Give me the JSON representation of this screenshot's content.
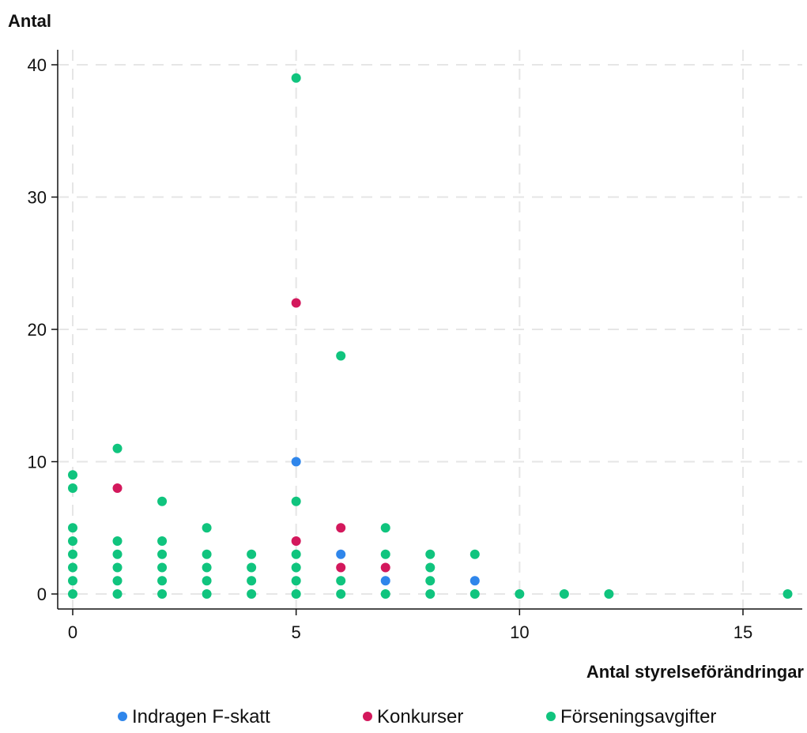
{
  "chart_data": {
    "type": "scatter",
    "xlabel": "Antal styrelseförändringar",
    "ylabel": "Antal",
    "xlim": [
      -0.3,
      16.3
    ],
    "ylim": [
      -1.1,
      41
    ],
    "xticks": [
      0,
      5,
      10,
      15
    ],
    "yticks": [
      0,
      10,
      20,
      30,
      40
    ],
    "grid": true,
    "legend_position": "bottom",
    "series": [
      {
        "name": "Indragen F-skatt",
        "color": "#2F86EB",
        "points": [
          [
            5,
            10
          ],
          [
            6,
            3
          ],
          [
            7,
            1
          ],
          [
            9,
            1
          ]
        ]
      },
      {
        "name": "Konkurser",
        "color": "#D3185C",
        "points": [
          [
            1,
            8
          ],
          [
            5,
            22
          ],
          [
            5,
            4
          ],
          [
            6,
            5
          ],
          [
            6,
            2
          ],
          [
            7,
            2
          ]
        ]
      },
      {
        "name": "Förseningsavgifter",
        "color": "#10C47E",
        "points": [
          [
            0,
            0
          ],
          [
            0,
            1
          ],
          [
            0,
            2
          ],
          [
            0,
            3
          ],
          [
            0,
            4
          ],
          [
            0,
            5
          ],
          [
            0,
            8
          ],
          [
            0,
            9
          ],
          [
            1,
            0
          ],
          [
            1,
            1
          ],
          [
            1,
            2
          ],
          [
            1,
            3
          ],
          [
            1,
            4
          ],
          [
            1,
            11
          ],
          [
            2,
            0
          ],
          [
            2,
            1
          ],
          [
            2,
            2
          ],
          [
            2,
            3
          ],
          [
            2,
            4
          ],
          [
            2,
            7
          ],
          [
            3,
            0
          ],
          [
            3,
            1
          ],
          [
            3,
            2
          ],
          [
            3,
            3
          ],
          [
            3,
            5
          ],
          [
            4,
            0
          ],
          [
            4,
            1
          ],
          [
            4,
            2
          ],
          [
            4,
            3
          ],
          [
            5,
            0
          ],
          [
            5,
            1
          ],
          [
            5,
            2
          ],
          [
            5,
            3
          ],
          [
            5,
            7
          ],
          [
            5,
            39
          ],
          [
            6,
            0
          ],
          [
            6,
            1
          ],
          [
            6,
            18
          ],
          [
            7,
            0
          ],
          [
            7,
            3
          ],
          [
            7,
            5
          ],
          [
            8,
            0
          ],
          [
            8,
            1
          ],
          [
            8,
            2
          ],
          [
            8,
            3
          ],
          [
            9,
            0
          ],
          [
            9,
            3
          ],
          [
            10,
            0
          ],
          [
            11,
            0
          ],
          [
            12,
            0
          ],
          [
            16,
            0
          ]
        ]
      }
    ]
  }
}
